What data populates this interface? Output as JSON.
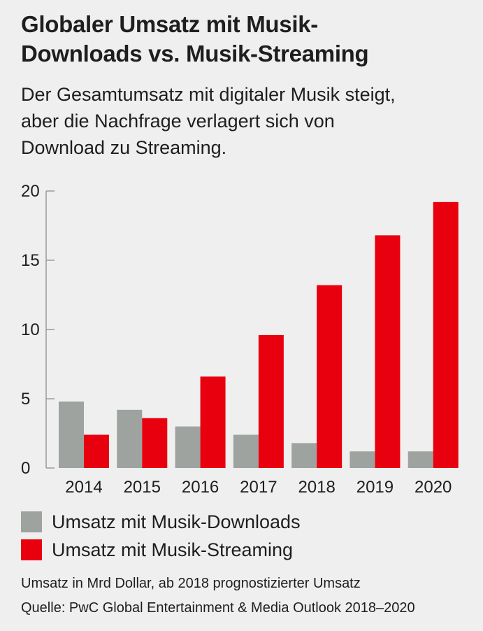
{
  "title_line1": "Globaler Umsatz mit Musik-",
  "title_line2": "Downloads vs. Musik-Streaming",
  "subtitle_line1": "Der Gesamtumsatz mit digitaler Musik steigt,",
  "subtitle_line2": "aber die Nachfrage verlagert sich von",
  "subtitle_line3": "Download zu Streaming.",
  "unit_note": "Umsatz in Mrd Dollar, ab 2018 prognostizierter Umsatz",
  "source_note": "Quelle: PwC Global Entertainment & Media Outlook 2018–2020",
  "colors": {
    "downloads": "#9fa39f",
    "streaming": "#e8000f",
    "axis": "#9a9a9a"
  },
  "chart_data": {
    "type": "bar",
    "categories": [
      "2014",
      "2015",
      "2016",
      "2017",
      "2018",
      "2019",
      "2020"
    ],
    "series": [
      {
        "name": "Umsatz mit Musik-Downloads",
        "values": [
          4.8,
          4.2,
          3.0,
          2.4,
          1.8,
          1.2,
          1.2
        ]
      },
      {
        "name": "Umsatz mit Musik-Streaming",
        "values": [
          2.4,
          3.6,
          6.6,
          9.6,
          13.2,
          16.8,
          19.2
        ]
      }
    ],
    "yticks": [
      0,
      5,
      10,
      15,
      20
    ],
    "ylim": [
      0,
      20
    ],
    "grid": false,
    "legend": "bottom"
  }
}
